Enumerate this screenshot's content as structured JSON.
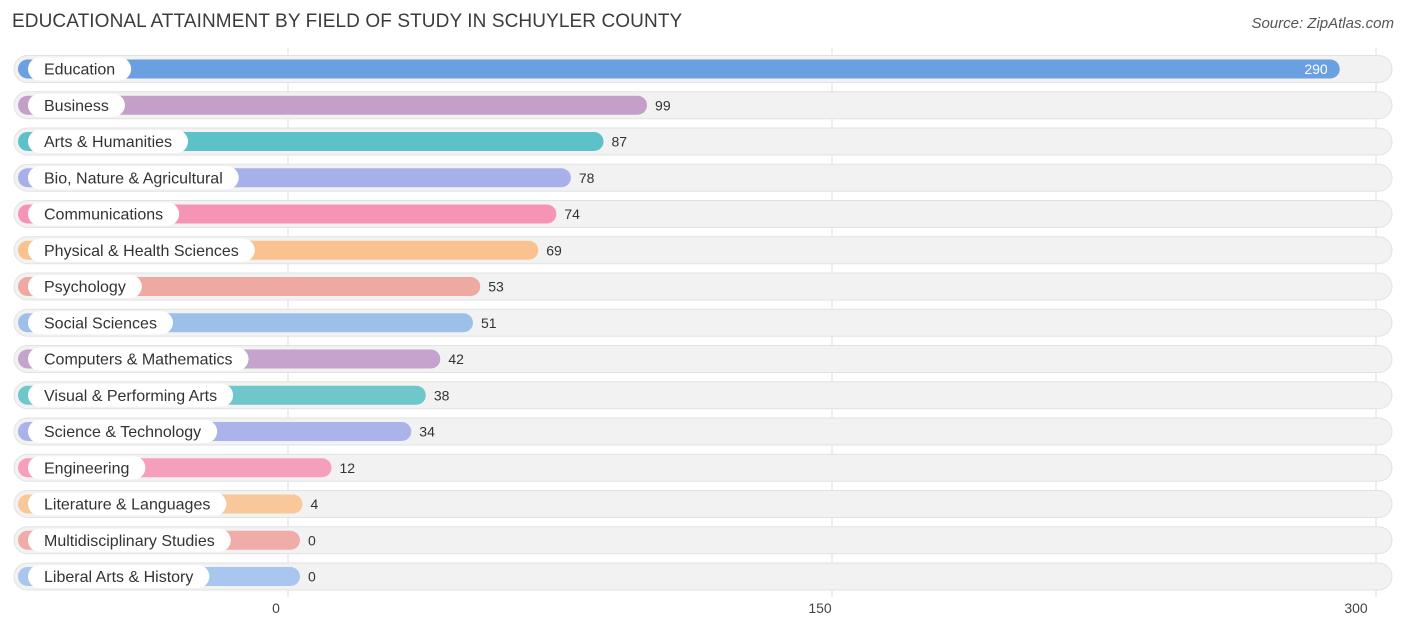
{
  "title": "EDUCATIONAL ATTAINMENT BY FIELD OF STUDY IN SCHUYLER COUNTY",
  "source": "Source: ZipAtlas.com",
  "chart_data": {
    "type": "bar",
    "orientation": "horizontal",
    "categories": [
      "Education",
      "Business",
      "Arts & Humanities",
      "Bio, Nature & Agricultural",
      "Communications",
      "Physical & Health Sciences",
      "Psychology",
      "Social Sciences",
      "Computers & Mathematics",
      "Visual & Performing Arts",
      "Science & Technology",
      "Engineering",
      "Literature & Languages",
      "Multidisciplinary Studies",
      "Liberal Arts & History"
    ],
    "values": [
      290,
      99,
      87,
      78,
      74,
      69,
      53,
      51,
      42,
      38,
      34,
      12,
      4,
      0,
      0
    ],
    "colors": [
      "#6a9fe0",
      "#c4a0c8",
      "#5cc1c8",
      "#a8b0ea",
      "#f594b5",
      "#f9c28e",
      "#eea9a2",
      "#9dc0e8",
      "#c4a4cc",
      "#6fc7cc",
      "#aab4ea",
      "#f59fbd",
      "#f9c89a",
      "#f0aca8",
      "#a9c6ee"
    ],
    "xticks": [
      0,
      150,
      300
    ],
    "xlim": [
      0,
      300
    ],
    "grid": true
  }
}
